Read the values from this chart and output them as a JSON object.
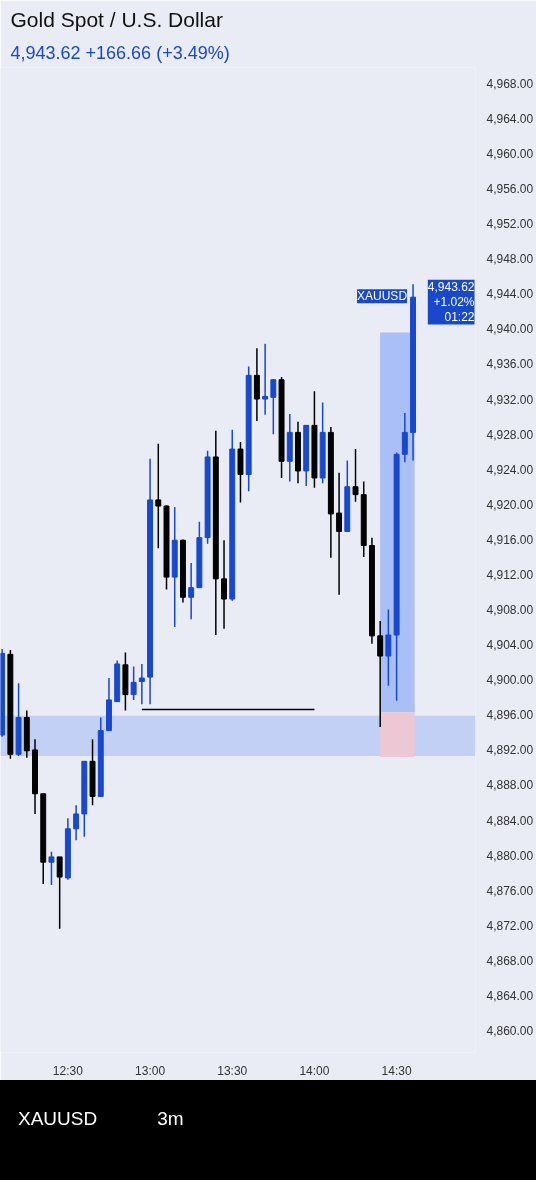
{
  "chart_data": {
    "type": "candlestick",
    "title": "Gold Spot / U.S. Dollar",
    "subtitle": "4,943.62  +166.66 (+3.49%)",
    "x": [
      12.1,
      12.15,
      12.2,
      12.25,
      12.3,
      12.35,
      12.4,
      12.45,
      12.5,
      12.55,
      12.6,
      12.65,
      12.7,
      12.75,
      12.8,
      12.85,
      12.9,
      12.95,
      13.0,
      13.05,
      13.1,
      13.15,
      13.2,
      13.25,
      13.3,
      13.35,
      13.4,
      13.45,
      13.5,
      13.55,
      13.6,
      13.65,
      13.7,
      13.75,
      13.8,
      13.85,
      13.9,
      13.95,
      14.0,
      14.05,
      14.1,
      14.15,
      14.2,
      14.25,
      14.3,
      14.35,
      14.4,
      14.45,
      14.5,
      14.55,
      14.6
    ],
    "ohlc": [
      [
        4893.7,
        4903.5,
        4893.5,
        4903.0
      ],
      [
        4902.9,
        4903.4,
        4891.0,
        4891.5
      ],
      [
        4891.5,
        4899.6,
        4891.3,
        4895.7
      ],
      [
        4895.7,
        4896.5,
        4891.1,
        4891.9
      ],
      [
        4892.0,
        4893.2,
        4884.7,
        4887.0
      ],
      [
        4887.0,
        4887.0,
        4876.7,
        4879.2
      ],
      [
        4879.2,
        4880.4,
        4876.6,
        4879.8
      ],
      [
        4879.8,
        4879.8,
        4871.6,
        4877.5
      ],
      [
        4877.4,
        4884.2,
        4877.2,
        4883.0
      ],
      [
        4883.0,
        4885.7,
        4881.7,
        4884.7
      ],
      [
        4884.7,
        4890.7,
        4882.1,
        4890.7
      ],
      [
        4890.7,
        4893.2,
        4885.7,
        4886.7
      ],
      [
        4886.7,
        4895.7,
        4886.7,
        4894.2
      ],
      [
        4894.2,
        4900.2,
        4894.2,
        4897.7
      ],
      [
        4897.5,
        4902.2,
        4897.5,
        4901.8
      ],
      [
        4901.7,
        4903.1,
        4896.5,
        4898.3
      ],
      [
        4898.3,
        4901.5,
        4897.7,
        4899.7
      ],
      [
        4899.8,
        4901.8,
        4897.2,
        4900.2
      ],
      [
        4900.3,
        4925.2,
        4897.2,
        4920.5
      ],
      [
        4920.5,
        4926.9,
        4915.0,
        4919.8
      ],
      [
        4919.8,
        4919.9,
        4910.3,
        4911.7
      ],
      [
        4911.7,
        4919.7,
        4906.0,
        4915.9
      ],
      [
        4915.9,
        4916.0,
        4908.8,
        4909.4
      ],
      [
        4909.4,
        4913.3,
        4906.9,
        4910.5
      ],
      [
        4910.5,
        4918.0,
        4910.5,
        4916.2
      ],
      [
        4916.2,
        4926.1,
        4915.5,
        4925.4
      ],
      [
        4925.4,
        4928.4,
        4905.1,
        4911.5
      ],
      [
        4911.5,
        4915.9,
        4905.8,
        4909.2
      ],
      [
        4909.2,
        4928.5,
        4909.0,
        4926.3
      ],
      [
        4926.3,
        4927.1,
        4920.2,
        4923.4
      ],
      [
        4923.4,
        4935.7,
        4921.5,
        4934.7
      ],
      [
        4934.7,
        4937.8,
        4929.5,
        4932.0
      ],
      [
        4932.0,
        4938.3,
        4930.2,
        4932.3
      ],
      [
        4932.2,
        4934.3,
        4928.0,
        4934.2
      ],
      [
        4934.2,
        4934.5,
        4923.0,
        4924.9
      ],
      [
        4924.9,
        4930.3,
        4922.6,
        4928.2
      ],
      [
        4928.2,
        4929.4,
        4922.4,
        4923.8
      ],
      [
        4923.8,
        4929.0,
        4922.1,
        4929.0
      ],
      [
        4929.0,
        4932.9,
        4921.9,
        4923.0
      ],
      [
        4923.0,
        4931.6,
        4922.4,
        4928.2
      ],
      [
        4928.2,
        4928.8,
        4913.9,
        4918.9
      ],
      [
        4919.0,
        4923.6,
        4909.7,
        4916.9
      ],
      [
        4916.9,
        4925.0,
        4916.9,
        4922.0
      ],
      [
        4922.0,
        4926.3,
        4920.3,
        4921.1
      ],
      [
        4921.1,
        4922.6,
        4914.0,
        4915.3
      ],
      [
        4915.3,
        4916.2,
        4904.1,
        4905.0
      ],
      [
        4905.0,
        4906.7,
        4894.6,
        4902.7
      ],
      [
        4902.7,
        4908.0,
        4899.3,
        4905.1
      ],
      [
        4905.1,
        4925.9,
        4897.6,
        4925.7
      ],
      [
        4925.7,
        4930.4,
        4924.8,
        4928.2
      ],
      [
        4928.2,
        4945.1,
        4925.0,
        4943.62
      ]
    ],
    "colors": [
      "#1848cc",
      "#000000",
      "#1848cc",
      "#000000",
      "#000000",
      "#000000",
      "#1848cc",
      "#000000",
      "#1848cc",
      "#1848cc",
      "#1848cc",
      "#000000",
      "#1848cc",
      "#1848cc",
      "#1848cc",
      "#000000",
      "#1848cc",
      "#1848cc",
      "#1848cc",
      "#000000",
      "#000000",
      "#1848cc",
      "#000000",
      "#1848cc",
      "#1848cc",
      "#1848cc",
      "#000000",
      "#000000",
      "#1848cc",
      "#000000",
      "#1848cc",
      "#000000",
      "#1848cc",
      "#1848cc",
      "#000000",
      "#1848cc",
      "#000000",
      "#1848cc",
      "#000000",
      "#1848cc",
      "#000000",
      "#000000",
      "#1848cc",
      "#000000",
      "#000000",
      "#000000",
      "#000000",
      "#1848cc",
      "#1848cc",
      "#1848cc",
      "#1848cc"
    ],
    "xlim": [
      12.09,
      14.98
    ],
    "ylim": [
      4857.5,
      4969.8
    ],
    "xticks": [
      {
        "value": 12.5,
        "label": "12:30"
      },
      {
        "value": 13,
        "label": "13:00"
      },
      {
        "value": 13.5,
        "label": "13:30"
      },
      {
        "value": 14,
        "label": "14:00"
      },
      {
        "value": 14.5,
        "label": "14:30"
      }
    ],
    "yticks": [
      {
        "value": 4860,
        "label": "4,860.00"
      },
      {
        "value": 4864,
        "label": "4,864.00"
      },
      {
        "value": 4868,
        "label": "4,868.00"
      },
      {
        "value": 4872,
        "label": "4,872.00"
      },
      {
        "value": 4876,
        "label": "4,876.00"
      },
      {
        "value": 4880,
        "label": "4,880.00"
      },
      {
        "value": 4884,
        "label": "4,884.00"
      },
      {
        "value": 4888,
        "label": "4,888.00"
      },
      {
        "value": 4892,
        "label": "4,892.00"
      },
      {
        "value": 4896,
        "label": "4,896.00"
      },
      {
        "value": 4900,
        "label": "4,900.00"
      },
      {
        "value": 4904,
        "label": "4,904.00"
      },
      {
        "value": 4908,
        "label": "4,908.00"
      },
      {
        "value": 4912,
        "label": "4,912.00"
      },
      {
        "value": 4916,
        "label": "4,916.00"
      },
      {
        "value": 4920,
        "label": "4,920.00"
      },
      {
        "value": 4924,
        "label": "4,924.00"
      },
      {
        "value": 4928,
        "label": "4,928.00"
      },
      {
        "value": 4932,
        "label": "4,932.00"
      },
      {
        "value": 4936,
        "label": "4,936.00"
      },
      {
        "value": 4940,
        "label": "4,940.00"
      },
      {
        "value": 4944,
        "label": "4,944.00"
      },
      {
        "value": 4948,
        "label": "4,948.00"
      },
      {
        "value": 4952,
        "label": "4,952.00"
      },
      {
        "value": 4956,
        "label": "4,956.00"
      },
      {
        "value": 4960,
        "label": "4,960.00"
      },
      {
        "value": 4964,
        "label": "4,964.00"
      },
      {
        "value": 4968,
        "label": "4,968.00"
      }
    ],
    "bands": [
      {
        "axis": "y",
        "from": 4891.3,
        "to": 4895.9,
        "color": "#c3d0f5",
        "label": null
      }
    ],
    "series": [
      {
        "type": "bar",
        "x": [
          14.505
        ],
        "base": [
          4896.3
        ],
        "values": [
          43.3
        ],
        "color": "#a9bff5"
      },
      {
        "type": "bar",
        "x": [
          14.505
        ],
        "base": [
          4891.2
        ],
        "values": [
          5.1
        ],
        "color": "#ebc8d3"
      },
      {
        "type": "line",
        "x": [
          12.95,
          14.0
        ],
        "values": [
          4896.6,
          4896.6
        ],
        "color": "#000000"
      }
    ],
    "annotations": [
      {
        "text": "XAUUSD",
        "x": 14.6,
        "y": 4943.62
      },
      "4,943.62\n+1.02%\n01:22",
      "XAUUSD",
      "3m"
    ],
    "grid": false
  }
}
